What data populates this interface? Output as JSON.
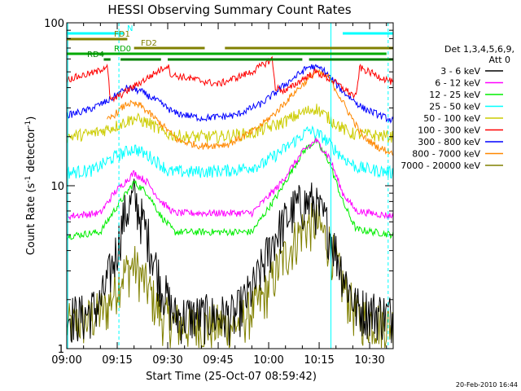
{
  "chart_data": {
    "type": "line",
    "title": "HESSI Observing Summary Count Rates",
    "xlabel": "Start Time (25-Oct-07 08:59:42)",
    "ylabel_main": "Count Rate (s",
    "ylabel_sup1": "-1",
    "ylabel_mid": " detector",
    "ylabel_sup2": "-1",
    "ylabel_end": ")",
    "ylog": true,
    "ylim": [
      1,
      100
    ],
    "xlim_minutes": [
      0,
      97
    ],
    "x_tick_labels": [
      "09:00",
      "09:15",
      "09:30",
      "09:45",
      "10:00",
      "10:15",
      "10:30"
    ],
    "x_tick_minutes": [
      0,
      15,
      30,
      45,
      60,
      75,
      90
    ],
    "y_tick_labels": [
      "1",
      "10",
      "100"
    ],
    "y_tick_values": [
      1,
      10,
      100
    ],
    "legend_header": [
      "Det 1,3,4,5,6,9,",
      "Att 0"
    ],
    "series": [
      {
        "name": "3 - 6 keV",
        "color": "#000000",
        "profile": [
          [
            0,
            1.6
          ],
          [
            5,
            1.6
          ],
          [
            10,
            1.9
          ],
          [
            14,
            3.5
          ],
          [
            17,
            6.5
          ],
          [
            20,
            8.5
          ],
          [
            24,
            5
          ],
          [
            28,
            2.5
          ],
          [
            32,
            1.6
          ],
          [
            50,
            1.6
          ],
          [
            56,
            2.5
          ],
          [
            62,
            5
          ],
          [
            68,
            7.5
          ],
          [
            73,
            8
          ],
          [
            77,
            6
          ],
          [
            82,
            3
          ],
          [
            86,
            1.8
          ],
          [
            97,
            1.6
          ]
        ]
      },
      {
        "name": "6 - 12 keV",
        "color": "#ff00ff",
        "profile": [
          [
            0,
            6.5
          ],
          [
            10,
            6.8
          ],
          [
            14,
            9
          ],
          [
            20,
            12
          ],
          [
            24,
            10.5
          ],
          [
            28,
            8
          ],
          [
            32,
            6.8
          ],
          [
            55,
            6.8
          ],
          [
            63,
            10
          ],
          [
            70,
            16
          ],
          [
            74,
            19
          ],
          [
            78,
            15
          ],
          [
            82,
            9
          ],
          [
            86,
            7
          ],
          [
            97,
            6.5
          ]
        ]
      },
      {
        "name": "12 - 25 keV",
        "color": "#00ee00",
        "profile": [
          [
            0,
            4.9
          ],
          [
            10,
            5.2
          ],
          [
            14,
            7
          ],
          [
            20,
            10.5
          ],
          [
            24,
            9
          ],
          [
            28,
            6.5
          ],
          [
            32,
            5.2
          ],
          [
            55,
            5.2
          ],
          [
            63,
            9
          ],
          [
            70,
            16
          ],
          [
            74,
            19
          ],
          [
            78,
            14
          ],
          [
            82,
            8
          ],
          [
            86,
            5.4
          ],
          [
            97,
            5
          ]
        ]
      },
      {
        "name": "25 - 50 keV",
        "color": "#00ffff",
        "profile": [
          [
            0,
            12
          ],
          [
            8,
            12.5
          ],
          [
            14,
            15
          ],
          [
            20,
            17
          ],
          [
            25,
            15
          ],
          [
            29,
            13
          ],
          [
            30,
            12.2
          ],
          [
            40,
            12.2
          ],
          [
            50,
            12.5
          ],
          [
            58,
            13.5
          ],
          [
            65,
            17
          ],
          [
            72,
            22
          ],
          [
            76,
            20
          ],
          [
            82,
            15
          ],
          [
            86,
            13
          ],
          [
            97,
            12
          ]
        ]
      },
      {
        "name": "50 - 100 keV",
        "color": "#cccc00",
        "profile": [
          [
            0,
            20
          ],
          [
            8,
            21
          ],
          [
            14,
            23
          ],
          [
            20,
            26
          ],
          [
            25,
            24
          ],
          [
            29,
            21
          ],
          [
            35,
            20
          ],
          [
            45,
            20
          ],
          [
            55,
            21
          ],
          [
            63,
            24
          ],
          [
            70,
            28
          ],
          [
            74,
            30
          ],
          [
            79,
            25
          ],
          [
            84,
            21
          ],
          [
            97,
            20
          ]
        ]
      },
      {
        "name": "100 - 300 keV",
        "color": "#ff0000",
        "profile": [
          [
            0,
            45
          ],
          [
            9,
            50
          ],
          [
            12,
            55
          ],
          [
            13,
            33
          ],
          [
            30,
            55
          ],
          [
            31,
            48
          ],
          [
            45,
            42
          ],
          [
            55,
            50
          ],
          [
            61,
            60
          ],
          [
            62,
            40
          ],
          [
            65,
            38
          ],
          [
            70,
            45
          ],
          [
            74,
            50
          ],
          [
            79,
            44
          ],
          [
            86,
            35
          ],
          [
            87,
            53
          ],
          [
            97,
            43
          ]
        ]
      },
      {
        "name": "300 - 800 keV",
        "color": "#0000ff",
        "profile": [
          [
            0,
            27
          ],
          [
            6,
            29
          ],
          [
            12,
            33
          ],
          [
            18,
            40
          ],
          [
            22,
            38
          ],
          [
            27,
            33
          ],
          [
            32,
            28
          ],
          [
            40,
            26
          ],
          [
            50,
            27
          ],
          [
            58,
            32
          ],
          [
            65,
            42
          ],
          [
            72,
            54
          ],
          [
            76,
            52
          ],
          [
            82,
            38
          ],
          [
            88,
            30
          ],
          [
            97,
            25
          ]
        ]
      },
      {
        "name": "800 - 7000 keV",
        "color": "#ff8800",
        "profile": [
          [
            12,
            25
          ],
          [
            18,
            32
          ],
          [
            22,
            31
          ],
          [
            28,
            24
          ],
          [
            33,
            19
          ],
          [
            40,
            17.5
          ],
          [
            48,
            18
          ],
          [
            56,
            22
          ],
          [
            62,
            28
          ],
          [
            68,
            38
          ],
          [
            74,
            50
          ],
          [
            78,
            46
          ],
          [
            83,
            30
          ],
          [
            88,
            20
          ],
          [
            93,
            17
          ],
          [
            97,
            16
          ]
        ]
      },
      {
        "name": "7000 - 20000 keV",
        "color": "#808000",
        "profile": [
          [
            0,
            1.4
          ],
          [
            6,
            1.5
          ],
          [
            12,
            1.8
          ],
          [
            16,
            2.8
          ],
          [
            20,
            3.3
          ],
          [
            24,
            2.4
          ],
          [
            28,
            1.6
          ],
          [
            34,
            1.4
          ],
          [
            50,
            1.4
          ],
          [
            58,
            2
          ],
          [
            64,
            3.5
          ],
          [
            70,
            5.5
          ],
          [
            74,
            6
          ],
          [
            78,
            4.5
          ],
          [
            82,
            2.5
          ],
          [
            86,
            1.6
          ],
          [
            97,
            1.4
          ]
        ]
      }
    ],
    "flags": [
      {
        "name": "N",
        "color": "#00ffff",
        "segments": [
          [
            0,
            17
          ],
          [
            82,
            97
          ]
        ]
      },
      {
        "name": "FD1",
        "color": "#808000",
        "segments": [
          [
            0,
            18
          ]
        ]
      },
      {
        "name": "FD2",
        "color": "#808000",
        "segments": [
          [
            20,
            41
          ],
          [
            47,
            97
          ]
        ]
      },
      {
        "name": "RD0",
        "color": "#00aa00",
        "segments": [
          [
            0,
            95
          ]
        ]
      },
      {
        "name": "RD4",
        "color": "#008000",
        "segments": [
          [
            11,
            13
          ],
          [
            16,
            28
          ],
          [
            30,
            70
          ],
          [
            72,
            97
          ]
        ]
      }
    ],
    "vertical_markers": [
      {
        "minute": 0.3,
        "color": "#00ffff",
        "style": "solid"
      },
      {
        "minute": 15.5,
        "color": "#00ffff",
        "style": "dashed"
      },
      {
        "minute": 78.5,
        "color": "#00ffff",
        "style": "solid"
      },
      {
        "minute": 95.5,
        "color": "#00ffff",
        "style": "dashed"
      }
    ],
    "footer_date": "20-Feb-2010 16:44",
    "grid": false,
    "legend_position": "right"
  }
}
